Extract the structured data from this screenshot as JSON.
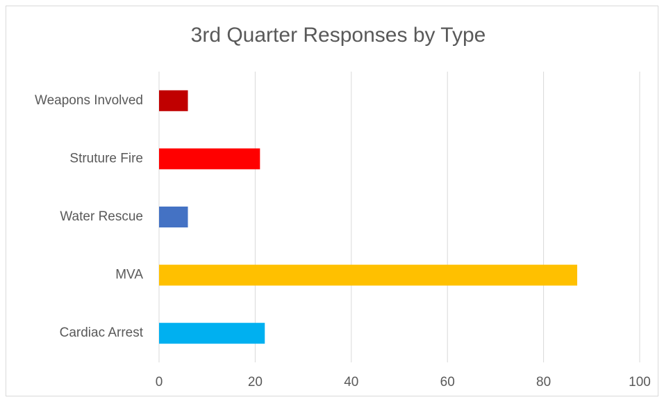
{
  "chart_data": {
    "type": "bar",
    "orientation": "horizontal",
    "title": "3rd Quarter Responses by Type",
    "categories": [
      "Weapons Involved",
      "Struture Fire",
      "Water Rescue",
      "MVA",
      "Cardiac Arrest"
    ],
    "values": [
      6,
      21,
      6,
      87,
      22
    ],
    "colors": [
      "#c00000",
      "#ff0000",
      "#4472c4",
      "#ffc000",
      "#00b0f0"
    ],
    "xlim": [
      0,
      100
    ],
    "xticks": [
      0,
      20,
      40,
      60,
      80,
      100
    ],
    "grid": true
  }
}
